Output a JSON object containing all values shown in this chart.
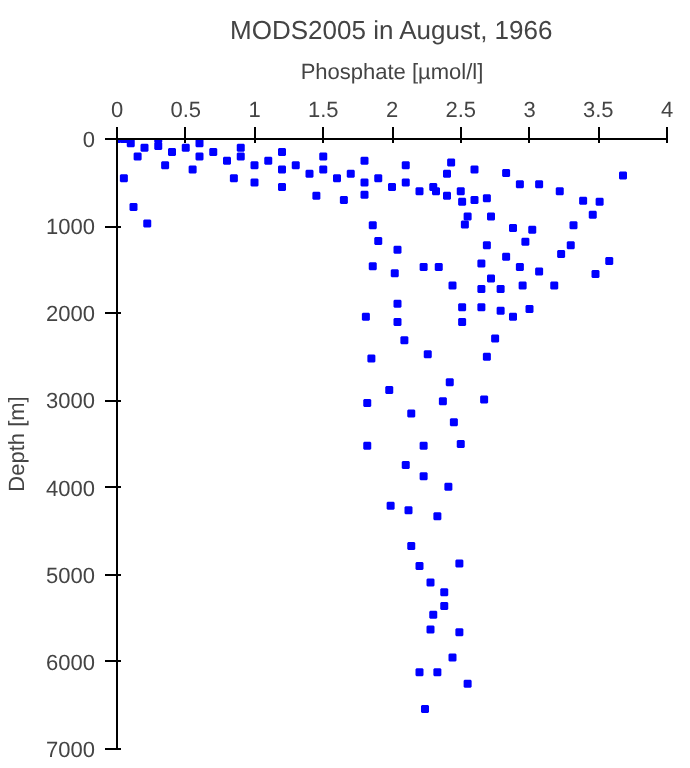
{
  "chart_data": {
    "type": "scatter",
    "title": "MODS2005 in August, 1966",
    "xlabel": "Phosphate [µmol/l]",
    "ylabel": "Depth [m]",
    "x": [
      0,
      0.1,
      0.2,
      0.3,
      0.4,
      0.5,
      0.6,
      0.7,
      0.8,
      0.9,
      1.0,
      1.1,
      1.2,
      1.3,
      1.4,
      1.5,
      1.6,
      1.7,
      1.8,
      1.9,
      2.0,
      2.1,
      2.2,
      2.3,
      2.4,
      2.5,
      2.6,
      0.15,
      0.35,
      0.55,
      0.85,
      1.0,
      1.2,
      1.45,
      1.65,
      0.05,
      0.3,
      0.6,
      0.9,
      1.2,
      1.5,
      1.8,
      2.1,
      2.4,
      2.6,
      0.05,
      0.12,
      0.22,
      3.68,
      3.58,
      3.48,
      3.0,
      1.8,
      2.43,
      2.83,
      2.93,
      3.07,
      3.22,
      3.39,
      3.51,
      3.46,
      3.32,
      3.02,
      3.3,
      3.23,
      3.18,
      2.95,
      1.86,
      1.9,
      2.04,
      1.86,
      2.02,
      2.23,
      2.34,
      2.44,
      2.51,
      2.04,
      1.81,
      2.04,
      2.51,
      2.65,
      2.79,
      2.88,
      2.53,
      2.69,
      2.83,
      2.65,
      2.72,
      2.93,
      3.07,
      2.65,
      2.79,
      2.69,
      2.51,
      2.32,
      2.55,
      2.72,
      2.88,
      2.97,
      2.09,
      2.75,
      2.69,
      2.26,
      1.85,
      2.42,
      1.98,
      1.82,
      2.37,
      2.67,
      2.45,
      2.14,
      1.82,
      2.23,
      2.5,
      2.1,
      2.23,
      2.41,
      1.99,
      2.12,
      2.33,
      2.14,
      2.49,
      2.2,
      2.28,
      2.38,
      2.38,
      2.3,
      2.28,
      2.49,
      2.44,
      2.2,
      2.33,
      2.55,
      2.24
    ],
    "values": [
      0,
      50,
      100,
      80,
      150,
      100,
      200,
      150,
      250,
      200,
      300,
      250,
      350,
      300,
      400,
      350,
      450,
      400,
      500,
      450,
      550,
      500,
      600,
      550,
      650,
      600,
      700,
      200,
      300,
      350,
      450,
      500,
      550,
      650,
      700,
      0,
      0,
      50,
      100,
      150,
      200,
      250,
      300,
      400,
      350,
      450,
      780,
      970,
      420,
      1400,
      1550,
      1950,
      640,
      270,
      390,
      520,
      520,
      600,
      710,
      720,
      870,
      990,
      1040,
      1220,
      1320,
      1680,
      1680,
      990,
      1170,
      1270,
      1460,
      1540,
      1470,
      1470,
      1680,
      1930,
      1890,
      2040,
      2100,
      2100,
      1930,
      1970,
      2040,
      980,
      1220,
      1350,
      1430,
      1600,
      1470,
      1520,
      1720,
      1720,
      680,
      720,
      600,
      890,
      890,
      1020,
      1180,
      2310,
      2290,
      2500,
      2470,
      2520,
      2790,
      2880,
      3030,
      3010,
      2990,
      3250,
      3150,
      3520,
      3520,
      3500,
      3740,
      3870,
      3990,
      4210,
      4260,
      4330,
      4670,
      4870,
      4900,
      5090,
      5200,
      5360,
      5460,
      5630,
      5660,
      5950,
      6120,
      6120,
      6250,
      6540
    ],
    "color": "#0000ff",
    "marker": "square",
    "xlim": [
      0,
      4
    ],
    "xticks": [
      0,
      0.5,
      1,
      1.5,
      2,
      2.5,
      3,
      3.5,
      4
    ],
    "ylim": [
      7000,
      0
    ],
    "yticks": [
      0,
      1000,
      2000,
      3000,
      4000,
      5000,
      6000,
      7000
    ],
    "grid": false
  }
}
